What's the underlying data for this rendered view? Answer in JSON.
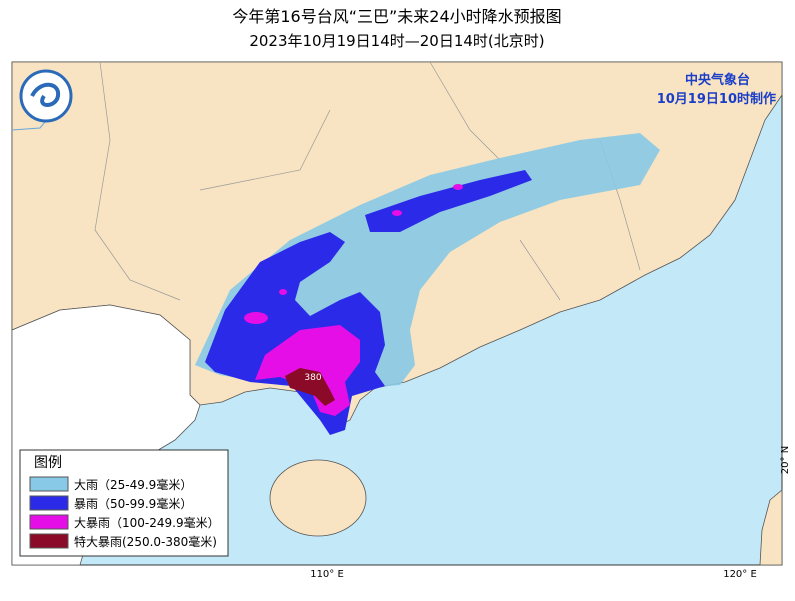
{
  "header": {
    "title": "今年第16号台风“三巴”未来24小时降水预报图",
    "subtitle": "2023年10月19日14时—20日14时(北京时)"
  },
  "map": {
    "agency": "中央气象台",
    "issued": "10月19日10时制作",
    "max_label": "380",
    "lon_labels": [
      "110° E",
      "120° E"
    ],
    "lat_labels": [
      "20° N"
    ]
  },
  "legend": {
    "title": "图例",
    "items": [
      {
        "label": "大雨（25-49.9毫米）",
        "color": "#87c9e6"
      },
      {
        "label": "暴雨（50-99.9毫米）",
        "color": "#2a2ae8"
      },
      {
        "label": "大暴雨（100-249.9毫米）",
        "color": "#e60ee6"
      },
      {
        "label": "特大暴雨(250.0-380毫米)",
        "color": "#8a0a28"
      }
    ]
  }
}
